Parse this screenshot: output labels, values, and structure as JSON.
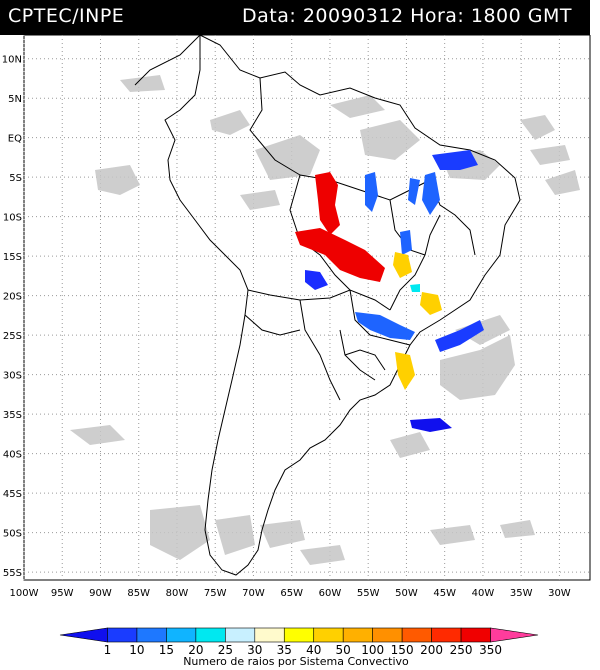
{
  "header": {
    "org": "CPTEC/INPE",
    "datetime": "Data: 20090312 Hora: 1800 GMT"
  },
  "map": {
    "lat_ticks": [
      "10N",
      "5N",
      "EQ",
      "5S",
      "10S",
      "15S",
      "20S",
      "25S",
      "30S",
      "35S",
      "40S",
      "45S",
      "50S",
      "55S"
    ],
    "lon_ticks": [
      "100W",
      "95W",
      "90W",
      "85W",
      "80W",
      "75W",
      "70W",
      "65W",
      "60W",
      "55W",
      "50W",
      "45W",
      "40W",
      "35W",
      "30W"
    ],
    "lat_values": [
      10,
      5,
      0,
      -5,
      -10,
      -15,
      -20,
      -25,
      -30,
      -35,
      -40,
      -45,
      -50,
      -55
    ],
    "lon_values": [
      -100,
      -95,
      -90,
      -85,
      -80,
      -75,
      -70,
      -65,
      -60,
      -55,
      -50,
      -45,
      -40,
      -35,
      -30
    ],
    "lat_range": [
      -56,
      13
    ],
    "lon_range": [
      -100,
      -26
    ],
    "grid": "dotted",
    "colors": {
      "land_outline": "#000000",
      "cloud": "#c8c8c8",
      "grid": "#9a9a9a"
    }
  },
  "legend": {
    "labels": [
      "1",
      "10",
      "15",
      "20",
      "25",
      "30",
      "35",
      "40",
      "50",
      "100",
      "150",
      "200",
      "250",
      "350"
    ],
    "colors": [
      "#1010ee",
      "#1a3cff",
      "#1e78ff",
      "#10b4ff",
      "#00e8f0",
      "#c8f0ff",
      "#fffacc",
      "#ffff00",
      "#ffd000",
      "#ffb000",
      "#ff9000",
      "#ff5a00",
      "#ff2a00",
      "#f00000",
      "#ff3c9c"
    ],
    "title": "Numero de raios por Sistema Convectivo"
  }
}
